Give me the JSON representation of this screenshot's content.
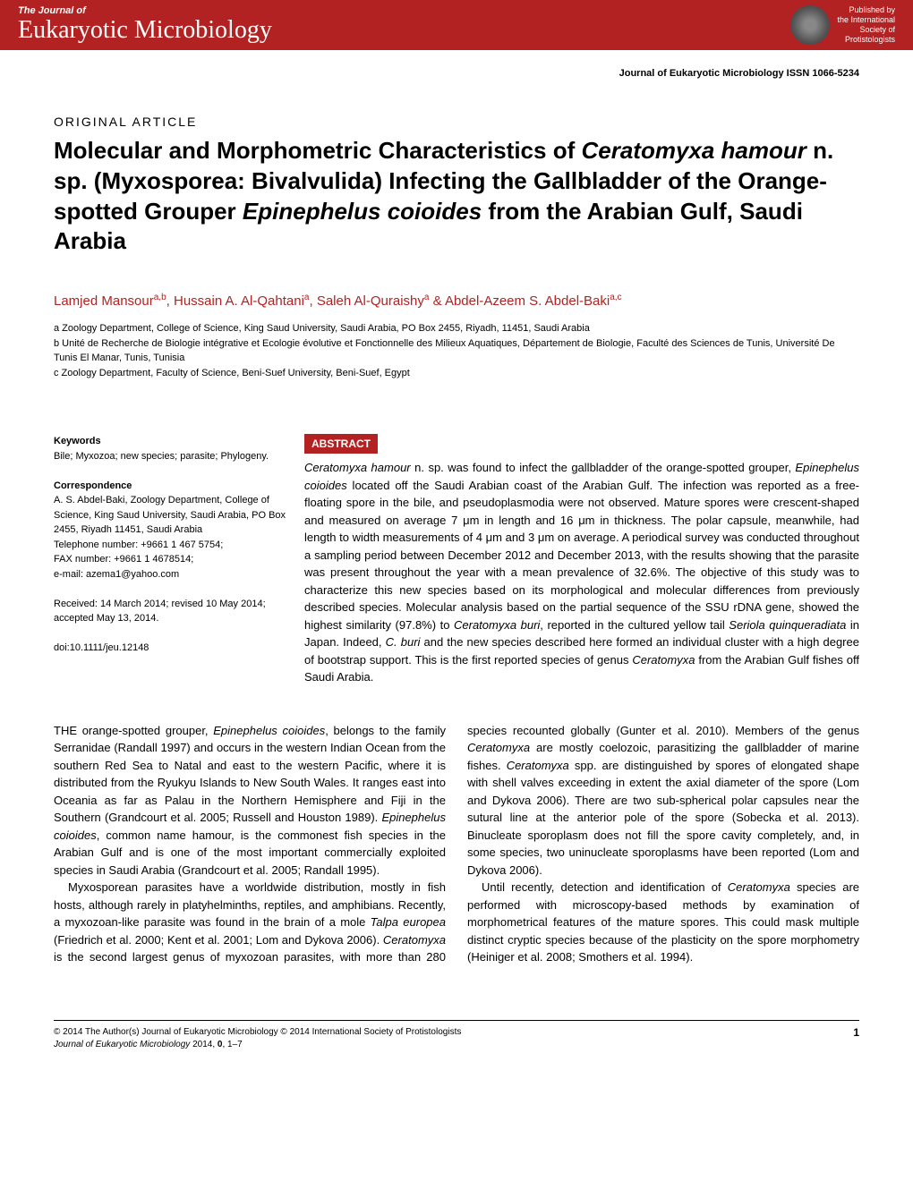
{
  "header": {
    "journal_of": "The Journal of",
    "journal_name": "Eukaryotic Microbiology",
    "published_by": "Published by",
    "society1": "the International",
    "society2": "Society of",
    "society3": "Protistologists"
  },
  "issn": "Journal of Eukaryotic Microbiology ISSN 1066-5234",
  "article_type": "ORIGINAL ARTICLE",
  "title_parts": {
    "t1": "Molecular and Morphometric Characteristics of ",
    "t2": "Ceratomyxa hamour",
    "t3": " n. sp. (Myxosporea: Bivalvulida) Infecting the Gallbladder of the Orange-spotted Grouper ",
    "t4": "Epinephelus coioides",
    "t5": " from the Arabian Gulf, Saudi Arabia"
  },
  "authors": {
    "a1": "Lamjed Mansour",
    "s1": "a,b",
    "a2": "Hussain A. Al-Qahtani",
    "s2": "a",
    "a3": "Saleh Al-Quraishy",
    "s3": "a",
    "amp": " & ",
    "a4": "Abdel-Azeem S. Abdel-Baki",
    "s4": "a,c"
  },
  "affiliations": {
    "a": "a Zoology Department, College of Science, King Saud University, Saudi Arabia, PO Box 2455, Riyadh, 11451, Saudi Arabia",
    "b": "b Unité de Recherche de Biologie intégrative et Ecologie évolutive et Fonctionnelle des Milieux Aquatiques, Département de Biologie, Faculté des Sciences de Tunis, Université De Tunis El Manar, Tunis, Tunisia",
    "c": "c Zoology Department, Faculty of Science, Beni-Suef University, Beni-Suef, Egypt"
  },
  "meta": {
    "keywords_label": "Keywords",
    "keywords": "Bile; Myxozoa; new species; parasite; Phylogeny.",
    "correspondence_label": "Correspondence",
    "correspondence": "A. S. Abdel-Baki, Zoology Department, College of Science, King Saud University, Saudi Arabia, PO Box 2455, Riyadh 11451, Saudi Arabia",
    "telephone": "Telephone number: +9661 1 467 5754;",
    "fax": "FAX number: +9661 1 4678514;",
    "email": "e-mail: azema1@yahoo.com",
    "received": "Received: 14 March 2014; revised 10 May 2014; accepted May 13, 2014.",
    "doi": "doi:10.1111/jeu.12148"
  },
  "abstract_label": "ABSTRACT",
  "abstract": {
    "a1": "Ceratomyxa hamour",
    "a2": " n. sp. was found to infect the gallbladder of the orange-spotted grouper, ",
    "a3": "Epinephelus coioides",
    "a4": " located off the Saudi Arabian coast of the Arabian Gulf. The infection was reported as a free-floating spore in the bile, and pseudoplasmodia were not observed. Mature spores were crescent-shaped and measured on average 7 μm in length and 16 μm in thickness. The polar capsule, meanwhile, had length to width measurements of 4 μm and 3 μm on average. A periodical survey was conducted throughout a sampling period between December 2012 and December 2013, with the results showing that the parasite was present throughout the year with a mean prevalence of 32.6%. The objective of this study was to characterize this new species based on its morphological and molecular differences from previously described species. Molecular analysis based on the partial sequence of the SSU rDNA gene, showed the highest similarity (97.8%) to ",
    "a5": "Ceratomyxa buri",
    "a6": ", reported in the cultured yellow tail ",
    "a7": "Seriola quinqueradiata",
    "a8": " in Japan. Indeed, ",
    "a9": "C. buri",
    "a10": " and the new species described here formed an individual cluster with a high degree of bootstrap support. This is the first reported species of genus ",
    "a11": "Ceratomyxa",
    "a12": " from the Arabian Gulf fishes off Saudi Arabia."
  },
  "body": {
    "p1a": "THE orange-spotted grouper, ",
    "p1b": "Epinephelus coioides",
    "p1c": ", belongs to the family Serranidae (Randall 1997) and occurs in the western Indian Ocean from the southern Red Sea to Natal and east to the western Pacific, where it is distributed from the Ryukyu Islands to New South Wales. It ranges east into Oceania as far as Palau in the Northern Hemisphere and Fiji in the Southern (Grandcourt et al. 2005; Russell and Houston 1989). ",
    "p1d": "Epinephelus coioides",
    "p1e": ", common name hamour, is the commonest fish species in the Arabian Gulf and is one of the most important commercially exploited species in Saudi Arabia (Grandcourt et al. 2005; Randall 1995).",
    "p2a": "Myxosporean parasites have a worldwide distribution, mostly in fish hosts, although rarely in platyhelminths, reptiles, and amphibians. Recently, a myxozoan-like parasite was found in the brain of a mole ",
    "p2b": "Talpa europea",
    "p2c": " (Friedrich et al. 2000; Kent et al. 2001; Lom and Dykova 2006). ",
    "p2d": "Ceratomyxa",
    "p2e": " is the second largest genus of myxozoan parasites, with more than 280 species recounted globally (Gunter et al. 2010). Members of the genus ",
    "p2f": "Ceratomyxa",
    "p2g": " are mostly coelozoic, parasitizing the gallbladder of marine fishes. ",
    "p2h": "Ceratomyxa",
    "p2i": " spp. are distinguished by spores of elongated shape with shell valves exceeding in extent the axial diameter of the spore (Lom and Dykova 2006). There are two sub-spherical polar capsules near the sutural line at the anterior pole of the spore (Sobecka et al. 2013). Binucleate sporoplasm does not fill the spore cavity completely, and, in some species, two uninucleate sporoplasms have been reported (Lom and Dykova 2006).",
    "p3a": "Until recently, detection and identification of ",
    "p3b": "Ceratomyxa",
    "p3c": " species are performed with microscopy-based methods by examination of morphometrical features of the mature spores. This could mask multiple distinct cryptic species because of the plasticity on the spore morphometry (Heiniger et al. 2008; Smothers et al. 1994)."
  },
  "footer": {
    "copyright": "© 2014 The Author(s) Journal of Eukaryotic Microbiology © 2014 International Society of Protistologists",
    "citation_a": "Journal of Eukaryotic Microbiology",
    "citation_b": " 2014, ",
    "citation_c": "0",
    "citation_d": ", 1–7",
    "page": "1"
  }
}
